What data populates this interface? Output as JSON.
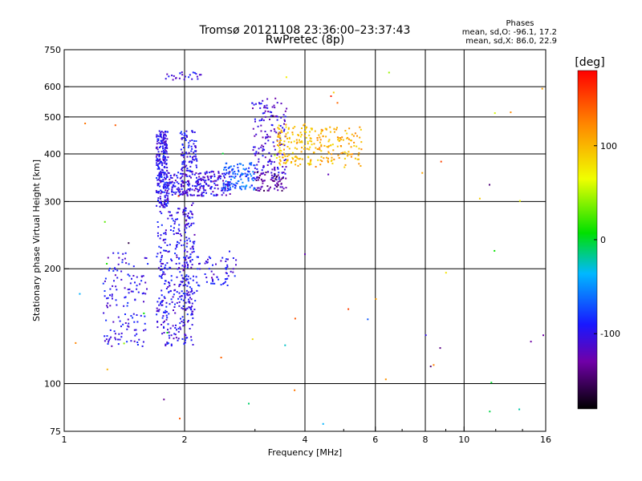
{
  "chart_data": {
    "type": "scatter",
    "title": "Tromsø 20121108 23:36:00–23:37:43",
    "subtitle": "RwPretec (8p)",
    "xlabel": "Frequency [MHz]",
    "ylabel": "Stationary phase Virtual Height [km]",
    "x_scale": "log",
    "y_scale": "log",
    "xlim": [
      1,
      16
    ],
    "ylim": [
      75,
      750
    ],
    "x_ticks": [
      1,
      2,
      4,
      6,
      8,
      10,
      16
    ],
    "y_ticks": [
      75,
      100,
      200,
      300,
      400,
      500,
      600,
      750
    ],
    "grid": true,
    "stats": {
      "heading": "Phases",
      "line1": "mean, sd,O:  -96.1, 17.2",
      "line2": "mean, sd,X:   86.0, 22.9"
    },
    "colorbar": {
      "label": "[deg]",
      "range": [
        -180,
        180
      ],
      "ticks": [
        100,
        0,
        -100
      ]
    },
    "clusters": [
      {
        "f": [
          1.7,
          1.82
        ],
        "h": [
          290,
          460
        ],
        "phase": -100,
        "n": 260
      },
      {
        "f": [
          1.82,
          2.6
        ],
        "h": [
          310,
          360
        ],
        "phase": -105,
        "n": 260
      },
      {
        "f": [
          1.95,
          2.15
        ],
        "h": [
          360,
          460
        ],
        "phase": -95,
        "n": 90
      },
      {
        "f": [
          2.5,
          3.0
        ],
        "h": [
          320,
          380
        ],
        "phase": -70,
        "n": 110
      },
      {
        "f": [
          2.95,
          3.6
        ],
        "h": [
          340,
          560
        ],
        "phase": -110,
        "n": 170
      },
      {
        "f": [
          3.0,
          3.6
        ],
        "h": [
          320,
          360
        ],
        "phase": -135,
        "n": 60
      },
      {
        "f": [
          3.4,
          4.2
        ],
        "h": [
          370,
          480
        ],
        "phase": 95,
        "n": 140
      },
      {
        "f": [
          4.2,
          5.6
        ],
        "h": [
          370,
          470
        ],
        "phase": 105,
        "n": 120
      },
      {
        "f": [
          1.7,
          2.1
        ],
        "h": [
          125,
          290
        ],
        "phase": -100,
        "n": 330
      },
      {
        "f": [
          1.98,
          2.15
        ],
        "h": [
          150,
          300
        ],
        "phase": -105,
        "n": 70
      },
      {
        "f": [
          1.25,
          1.62
        ],
        "h": [
          125,
          220
        ],
        "phase": -100,
        "n": 140
      },
      {
        "f": [
          2.15,
          2.7
        ],
        "h": [
          180,
          215
        ],
        "phase": -100,
        "n": 60
      },
      {
        "f": [
          1.78,
          2.2
        ],
        "h": [
          625,
          655
        ],
        "phase": -100,
        "n": 25
      },
      {
        "f": [
          1.05,
          16.0
        ],
        "h": [
          78,
          740
        ],
        "phase": 0,
        "n": 60
      }
    ]
  }
}
